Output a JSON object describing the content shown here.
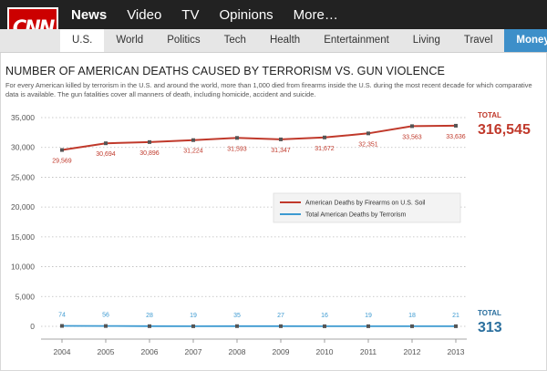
{
  "nav": {
    "logo": "CNN",
    "top_items": [
      "News",
      "Video",
      "TV",
      "Opinions",
      "More…"
    ],
    "sub_items": [
      "U.S.",
      "World",
      "Politics",
      "Tech",
      "Health",
      "Entertainment",
      "Living",
      "Travel",
      "Money"
    ]
  },
  "headline": "NUMBER OF AMERICAN DEATHS CAUSED BY TERRORISM VS. GUN VIOLENCE",
  "subtitle": "For every American killed by terrorism in the U.S. and around the world, more than 1,000 died from firearms inside the U.S. during the most recent decade for which comparative data is available. The gun fatalities cover all manners of death, including homicide, accident and suicide.",
  "colors": {
    "guns": "#c0392b",
    "terror": "#3d9ad1",
    "grid": "#bbbbbb"
  },
  "chart_data": {
    "type": "line",
    "x": [
      2004,
      2005,
      2006,
      2007,
      2008,
      2009,
      2010,
      2011,
      2012,
      2013
    ],
    "ylim": [
      0,
      35000
    ],
    "yticks": [
      "0",
      "5,000",
      "10,000",
      "15,000",
      "20,000",
      "25,000",
      "30,000",
      "35,000"
    ],
    "ytick_values": [
      0,
      5000,
      10000,
      15000,
      20000,
      25000,
      30000,
      35000
    ],
    "grid": "horizontal dotted",
    "legend_position": "center-right",
    "series": [
      {
        "name": "American Deaths by Firearms on U.S. Soil",
        "values": [
          29569,
          30694,
          30896,
          31224,
          31593,
          31347,
          31672,
          32351,
          33563,
          33636
        ],
        "labels": [
          "29,569",
          "30,694",
          "30,896",
          "31,224",
          "31,593",
          "31,347",
          "31,672",
          "32,351",
          "33,563",
          "33,636"
        ],
        "total_label": "TOTAL",
        "total": "316,545"
      },
      {
        "name": "Total American Deaths by Terrorism",
        "values": [
          74,
          56,
          28,
          19,
          35,
          27,
          16,
          19,
          18,
          21
        ],
        "labels": [
          "74",
          "56",
          "28",
          "19",
          "35",
          "27",
          "16",
          "19",
          "18",
          "21"
        ],
        "total_label": "TOTAL",
        "total": "313"
      }
    ]
  }
}
